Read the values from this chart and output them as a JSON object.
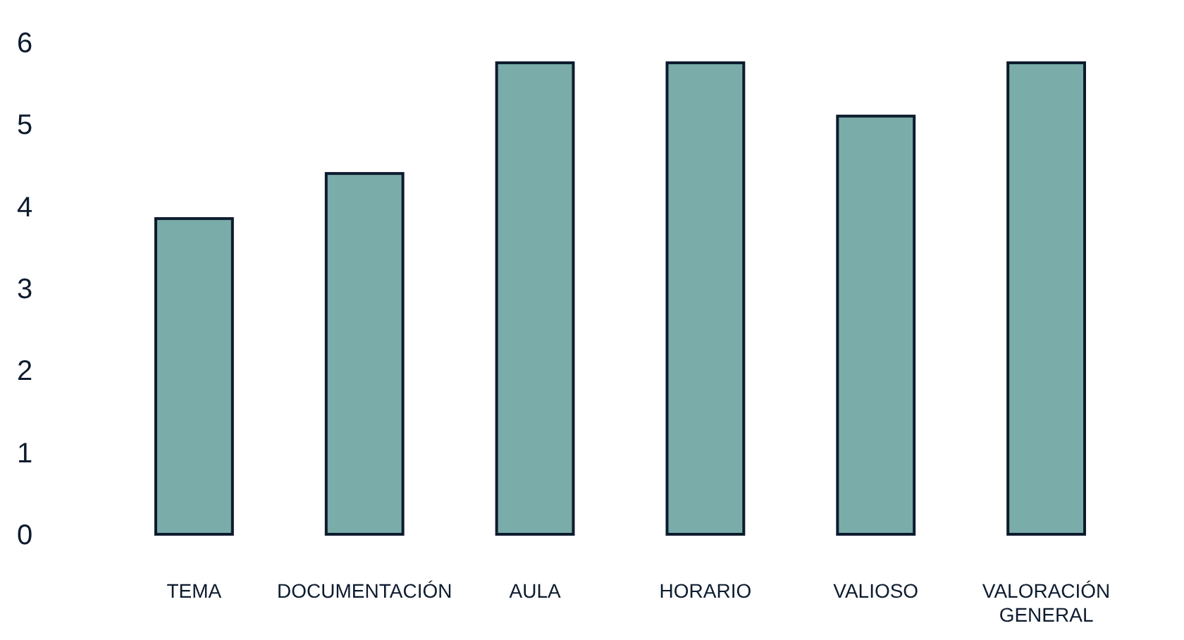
{
  "chart_data": {
    "type": "bar",
    "categories": [
      "TEMA",
      "DOCUMENTACIÓN",
      "AULA",
      "HORARIO",
      "VALIOSO",
      "VALORACIÓN GENERAL"
    ],
    "values": [
      3.85,
      4.4,
      5.75,
      5.75,
      5.1,
      5.75
    ],
    "color": "#7aaca9",
    "ylim": [
      0,
      6
    ],
    "yticks": [
      0,
      1,
      2,
      3,
      4,
      5,
      6
    ],
    "grid": false
  }
}
